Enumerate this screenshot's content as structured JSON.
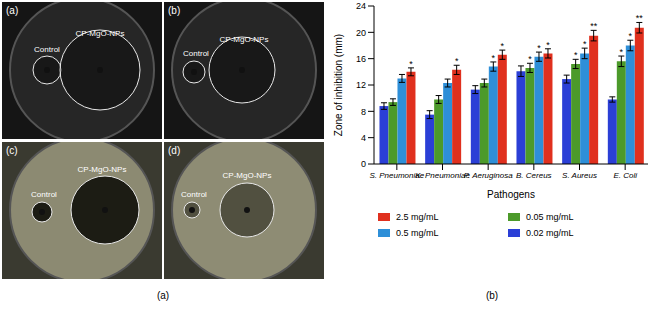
{
  "photo_panel": {
    "caption": "(a)",
    "photos": [
      {
        "label": "(a)",
        "control": "Control",
        "sample": "CP-MgO-NPs"
      },
      {
        "label": "(b)",
        "control": "Control",
        "sample": "CP-MgO-NPs"
      },
      {
        "label": "(c)",
        "control": "Control",
        "sample": "CP-MgO-NPs"
      },
      {
        "label": "(d)",
        "control": "Control",
        "sample": "CP-MgO-NPs"
      }
    ]
  },
  "chart_data": {
    "type": "bar",
    "caption": "(b)",
    "x_label": "Pathogens",
    "y_label": "Zone of inhibition (mm)",
    "categories": [
      "S. Pneumoniae",
      "K. Pneumoniae",
      "P. Aeruginosa",
      "B. Cereus",
      "S. Aureus",
      "E. Coli"
    ],
    "series": [
      {
        "name": "0.02 mg/mL",
        "color": "#2b3fd6",
        "values": [
          8.8,
          7.5,
          11.3,
          14.1,
          12.9,
          9.8
        ],
        "errors": [
          0.5,
          0.6,
          0.6,
          0.8,
          0.6,
          0.4
        ],
        "significance": [
          null,
          null,
          null,
          null,
          null,
          null
        ]
      },
      {
        "name": "0.05 mg/mL",
        "color": "#4c9a2a",
        "values": [
          9.4,
          9.8,
          12.3,
          14.6,
          15.2,
          15.6
        ],
        "errors": [
          0.5,
          0.6,
          0.6,
          0.7,
          0.7,
          0.8
        ],
        "significance": [
          null,
          null,
          null,
          "*",
          "*",
          "*"
        ]
      },
      {
        "name": "0.5 mg/mL",
        "color": "#2e8fd8",
        "values": [
          13.0,
          12.3,
          14.8,
          16.3,
          16.8,
          18.0
        ],
        "errors": [
          0.6,
          0.6,
          0.7,
          0.7,
          0.8,
          0.8
        ],
        "significance": [
          null,
          null,
          "*",
          "*",
          "*",
          "*"
        ]
      },
      {
        "name": "2.5 mg/mL",
        "color": "#e0301e",
        "values": [
          14.0,
          14.3,
          16.6,
          16.8,
          19.5,
          20.7
        ],
        "errors": [
          0.6,
          0.7,
          0.7,
          0.7,
          0.8,
          0.8
        ],
        "significance": [
          "*",
          "*",
          "*",
          "*",
          "**",
          "**"
        ]
      }
    ],
    "legend_order": [
      "2.5 mg/mL",
      "0.05 mg/mL",
      "0.5 mg/mL",
      "0.02 mg/mL"
    ],
    "ylim": [
      0,
      24
    ],
    "yticks": [
      0,
      4,
      8,
      12,
      16,
      20,
      24
    ],
    "grid": false,
    "legend": "bottom"
  }
}
